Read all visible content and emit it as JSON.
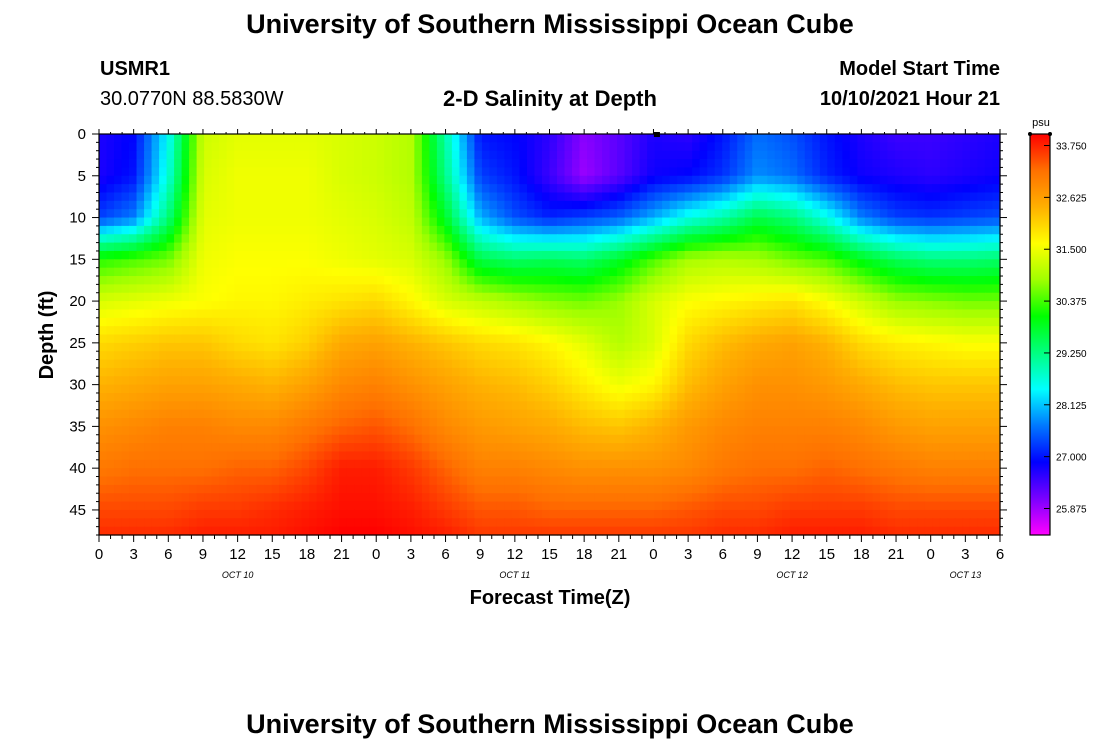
{
  "header": {
    "main_title": "University of Southern Mississippi Ocean Cube",
    "station_name": "USMR1",
    "station_coords": "30.0770N  88.5830W",
    "plot_title": "2-D Salinity at Depth",
    "model_label": "Model Start Time",
    "model_time": "10/10/2021 Hour 21"
  },
  "footer": {
    "main_title": "University of Southern Mississippi Ocean Cube"
  },
  "colors": {
    "ramp": [
      "#ff00ff",
      "#7a00ff",
      "#0000ff",
      "#0078ff",
      "#00ffff",
      "#00ff80",
      "#00ff00",
      "#a0ff00",
      "#ffff00",
      "#ffb000",
      "#ff7000",
      "#ff0000"
    ]
  },
  "chart_data": {
    "type": "heatmap",
    "title": "2-D Salinity at Depth",
    "xlabel": "Forecast Time(Z)",
    "ylabel": "Depth (ft)",
    "x_tick_labels": [
      "0",
      "3",
      "6",
      "9",
      "12",
      "15",
      "18",
      "21",
      "0",
      "3",
      "6",
      "9",
      "12",
      "15",
      "18",
      "21",
      "0",
      "3",
      "6",
      "9",
      "12",
      "15",
      "18",
      "21",
      "0",
      "3",
      "6"
    ],
    "x_range_hours": [
      0,
      78
    ],
    "day_labels": [
      {
        "text": "OCT 10",
        "hour": 12
      },
      {
        "text": "OCT 11",
        "hour": 36
      },
      {
        "text": "OCT 12",
        "hour": 60
      },
      {
        "text": "OCT 13",
        "hour": 75
      }
    ],
    "y_ticks": [
      0,
      5,
      10,
      15,
      20,
      25,
      30,
      35,
      40,
      45
    ],
    "y_range": [
      0,
      48
    ],
    "colorbar": {
      "units": "psu",
      "min": 25.3,
      "max": 34.0,
      "tick_labels": [
        "33.750",
        "32.625",
        "31.500",
        "30.375",
        "29.250",
        "28.125",
        "27.000",
        "25.875"
      ]
    },
    "grid_hours": [
      0,
      3,
      6,
      9,
      12,
      15,
      18,
      21,
      24,
      27,
      30,
      33,
      36,
      39,
      42,
      45,
      48,
      51,
      54,
      57,
      60,
      63,
      66,
      69,
      72,
      75,
      78
    ],
    "grid_depths": [
      0,
      5,
      10,
      15,
      20,
      25,
      30,
      35,
      40,
      45,
      48
    ],
    "values_by_depth": [
      [
        26.7,
        26.9,
        28.5,
        31.2,
        31.4,
        31.4,
        31.4,
        31.3,
        31.2,
        31.0,
        29.0,
        27.0,
        26.9,
        26.6,
        26.0,
        26.3,
        26.7,
        26.6,
        27.0,
        27.6,
        27.4,
        27.0,
        26.7,
        26.5,
        26.5,
        26.6,
        26.7
      ],
      [
        26.7,
        27.0,
        28.7,
        31.3,
        31.5,
        31.5,
        31.5,
        31.3,
        31.2,
        31.0,
        29.2,
        27.3,
        27.0,
        26.5,
        25.9,
        26.3,
        26.8,
        26.9,
        27.2,
        27.8,
        27.6,
        27.1,
        26.8,
        26.7,
        26.6,
        26.7,
        26.8
      ],
      [
        27.3,
        27.7,
        29.3,
        31.4,
        31.5,
        31.5,
        31.5,
        31.4,
        31.3,
        31.1,
        29.8,
        28.0,
        27.4,
        27.1,
        27.3,
        27.5,
        28.0,
        28.6,
        29.0,
        29.6,
        29.3,
        28.6,
        27.7,
        27.3,
        27.2,
        27.3,
        27.4
      ],
      [
        30.2,
        30.4,
        30.6,
        31.5,
        31.6,
        31.6,
        31.6,
        31.5,
        31.4,
        31.3,
        30.8,
        29.6,
        29.4,
        29.5,
        29.4,
        29.8,
        30.4,
        30.9,
        31.0,
        30.9,
        30.6,
        30.4,
        29.9,
        29.5,
        29.3,
        29.3,
        29.4
      ],
      [
        31.3,
        31.4,
        31.5,
        31.6,
        31.7,
        31.7,
        31.8,
        31.9,
        32.0,
        31.7,
        31.3,
        31.1,
        30.9,
        30.7,
        30.6,
        30.8,
        31.3,
        31.6,
        31.7,
        31.8,
        31.9,
        31.6,
        31.2,
        30.8,
        30.7,
        30.6,
        30.6
      ],
      [
        32.0,
        32.1,
        32.2,
        32.2,
        32.0,
        31.9,
        32.1,
        32.5,
        32.6,
        32.4,
        32.2,
        32.0,
        31.9,
        31.7,
        31.4,
        31.0,
        31.3,
        32.0,
        32.3,
        32.5,
        32.6,
        32.4,
        32.0,
        31.8,
        31.7,
        31.6,
        31.6
      ],
      [
        32.4,
        32.5,
        32.6,
        32.6,
        32.5,
        32.4,
        32.6,
        32.9,
        33.0,
        32.8,
        32.6,
        32.4,
        32.3,
        32.1,
        31.8,
        31.5,
        31.7,
        32.3,
        32.6,
        32.8,
        32.8,
        32.7,
        32.5,
        32.3,
        32.2,
        32.2,
        32.2
      ],
      [
        32.8,
        32.9,
        33.0,
        33.0,
        32.9,
        32.9,
        33.1,
        33.3,
        33.4,
        33.2,
        32.9,
        32.7,
        32.6,
        32.5,
        32.3,
        32.2,
        32.4,
        32.7,
        32.9,
        33.0,
        33.0,
        33.0,
        32.9,
        32.7,
        32.6,
        32.6,
        32.6
      ],
      [
        33.1,
        33.2,
        33.2,
        33.2,
        33.3,
        33.3,
        33.5,
        33.8,
        33.8,
        33.6,
        33.3,
        33.0,
        33.0,
        32.9,
        32.8,
        32.8,
        32.8,
        32.9,
        33.1,
        33.2,
        33.2,
        33.3,
        33.2,
        33.1,
        33.0,
        33.0,
        33.0
      ],
      [
        33.5,
        33.5,
        33.5,
        33.6,
        33.6,
        33.7,
        33.8,
        33.9,
        33.9,
        33.8,
        33.6,
        33.4,
        33.4,
        33.3,
        33.3,
        33.3,
        33.3,
        33.4,
        33.5,
        33.5,
        33.6,
        33.6,
        33.6,
        33.5,
        33.5,
        33.5,
        33.5
      ],
      [
        33.7,
        33.7,
        33.7,
        33.8,
        33.8,
        33.8,
        33.9,
        34.0,
        34.0,
        33.9,
        33.8,
        33.6,
        33.6,
        33.6,
        33.6,
        33.6,
        33.6,
        33.6,
        33.7,
        33.7,
        33.8,
        33.8,
        33.8,
        33.7,
        33.7,
        33.7,
        33.7
      ]
    ]
  }
}
